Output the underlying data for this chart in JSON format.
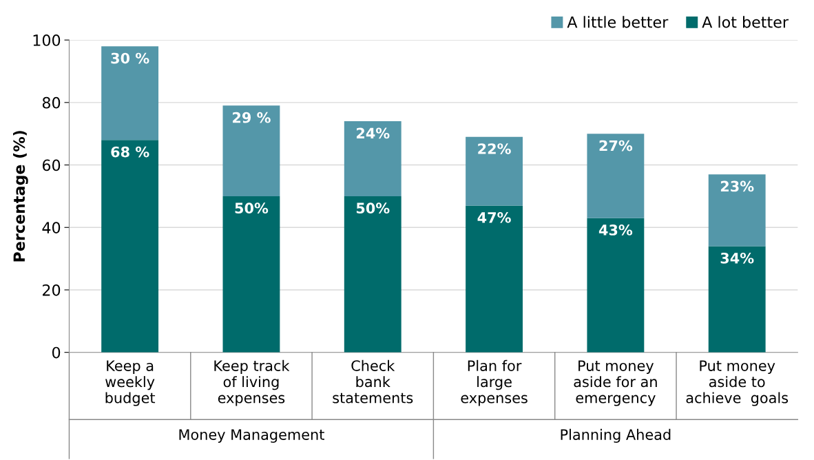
{
  "chart_data": {
    "type": "bar",
    "stacked": true,
    "ylabel": "Percentage (%)",
    "categories": [
      "Keep a\nweekly\nbudget",
      "Keep track\nof living\nexpenses",
      "Check\nbank\nstatements",
      "Plan for\nlarge\nexpenses",
      "Put money\naside for an\nemergency",
      "Put money\naside to\nachieve  goals"
    ],
    "series": [
      {
        "name": "A lot better",
        "color": "#006b6b",
        "values": [
          68,
          50,
          50,
          47,
          43,
          34
        ],
        "value_labels": [
          "68 %",
          "50%",
          "50%",
          "47%",
          "43%",
          "34%"
        ]
      },
      {
        "name": "A little better",
        "color": "#5497a9",
        "values": [
          30,
          29,
          24,
          22,
          27,
          23
        ],
        "value_labels": [
          "30 %",
          "29 %",
          "24%",
          "22%",
          "27%",
          "23%"
        ]
      }
    ],
    "ylim": [
      0,
      100
    ],
    "yticks": [
      0,
      20,
      40,
      60,
      80,
      100
    ],
    "grid": "y",
    "legend": "top right",
    "annotations": [
      "Money Management",
      "Planning Ahead"
    ]
  }
}
